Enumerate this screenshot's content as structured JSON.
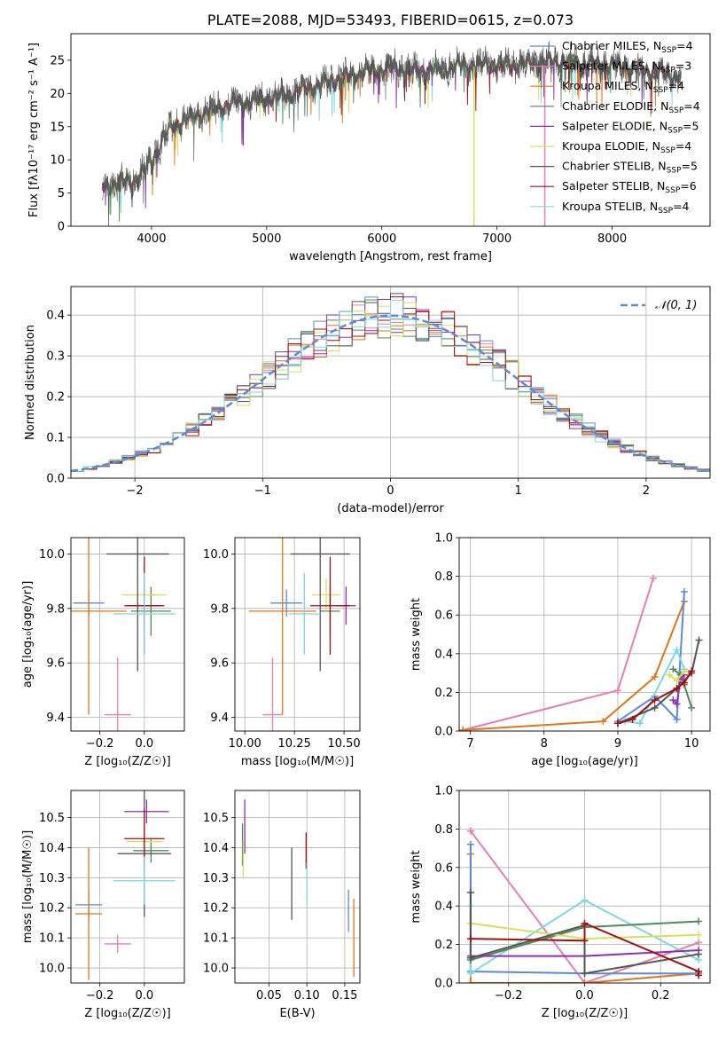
{
  "colors": {
    "chabrier_miles": "#5b8bd8",
    "salpeter_miles": "#e67fb3",
    "kroupa_miles": "#e0761a",
    "chabrier_elodie": "#4f8a5a",
    "salpeter_elodie": "#8e2fb5",
    "kroupa_elodie": "#d6e05a",
    "chabrier_stelib": "#555555",
    "salpeter_stelib": "#a01010",
    "kroupa_stelib": "#7ed8e0",
    "gauss": "#5b8bd8",
    "grid": "#b0b0b0"
  },
  "chart_data": [
    {
      "id": "spectrum",
      "type": "line",
      "title": "PLATE=2088, MJD=53493, FIBERID=0615, z=0.073",
      "xlabel": "wavelength [Angstrom, rest frame]",
      "ylabel": "Flux [fλ10⁻¹⁷ erg cm⁻² s⁻¹ A⁻¹]",
      "xlim": [
        3300,
        8850
      ],
      "ylim": [
        0,
        29
      ],
      "xticks": [
        "4000",
        "5000",
        "6000",
        "7000",
        "8000"
      ],
      "yticks": [
        "0",
        "5",
        "10",
        "15",
        "20",
        "25"
      ],
      "grid": false,
      "legend_position": "right",
      "legend": [
        {
          "label": "Chabrier MILES, N",
          "sub": "SSP",
          "suffix": "=4",
          "key": "chabrier_miles"
        },
        {
          "label": "Salpeter MILES, N",
          "sub": "SSP",
          "suffix": "=3",
          "key": "salpeter_miles"
        },
        {
          "label": "Kroupa MILES, N",
          "sub": "SSP",
          "suffix": "=4",
          "key": "kroupa_miles"
        },
        {
          "label": "Chabrier ELODIE, N",
          "sub": "SSP",
          "suffix": "=4",
          "key": "chabrier_elodie"
        },
        {
          "label": "Salpeter ELODIE, N",
          "sub": "SSP",
          "suffix": "=5",
          "key": "salpeter_elodie"
        },
        {
          "label": "Kroupa ELODIE, N",
          "sub": "SSP",
          "suffix": "=4",
          "key": "kroupa_elodie"
        },
        {
          "label": "Chabrier STELIB, N",
          "sub": "SSP",
          "suffix": "=5",
          "key": "chabrier_stelib"
        },
        {
          "label": "Salpeter STELIB, N",
          "sub": "SSP",
          "suffix": "=6",
          "key": "salpeter_stelib"
        },
        {
          "label": "Kroupa STELIB, N",
          "sub": "SSP",
          "suffix": "=4",
          "key": "kroupa_stelib"
        }
      ],
      "continuum": {
        "x": [
          3570,
          3700,
          3850,
          3950,
          4000,
          4100,
          4200,
          4300,
          4500,
          4700,
          4900,
          5100,
          5300,
          5500,
          5700,
          5900,
          6100,
          6300,
          6500,
          6700,
          6900,
          7100,
          7300,
          7500,
          7700,
          7900,
          8100,
          8300,
          8600
        ],
        "y": [
          6,
          6.5,
          7,
          8.5,
          10,
          13,
          15.5,
          16,
          17.5,
          18.5,
          19,
          19.5,
          20.5,
          21.5,
          22.5,
          23.5,
          23.8,
          23.5,
          23.7,
          24.2,
          24.3,
          24.4,
          24.5,
          24.8,
          24.6,
          24.3,
          24.0,
          23.5,
          22.5
        ]
      },
      "vlines": [
        {
          "x": 6800,
          "key": "kroupa_elodie"
        },
        {
          "x": 7415,
          "key": "salpeter_miles"
        }
      ]
    },
    {
      "id": "residuals",
      "type": "bar",
      "xlabel": "(data-model)/error",
      "ylabel": "Normed distribution",
      "xlim": [
        -2.5,
        2.5
      ],
      "ylim": [
        0,
        0.47
      ],
      "xticks": [
        "−2",
        "−1",
        "0",
        "1",
        "2"
      ],
      "yticks": [
        "0.0",
        "0.1",
        "0.2",
        "0.3",
        "0.4"
      ],
      "grid": true,
      "legend_position": "top-right",
      "legend": [
        {
          "label": "𝒩(0, 1)",
          "key": "gauss"
        }
      ],
      "bin_width": 0.1
    },
    {
      "id": "age_vs_Z",
      "type": "scatter",
      "xlabel": "Z [log₁₀(Z/Z☉)]",
      "ylabel": "age  [log₁₀(age/yr)]",
      "xlim": [
        -0.33,
        0.18
      ],
      "ylim": [
        9.35,
        10.06
      ],
      "xticks": [
        "−0.2",
        "0.0"
      ],
      "yticks": [
        "9.4",
        "9.6",
        "9.8",
        "10.0"
      ],
      "grid": true,
      "points": [
        {
          "key": "chabrier_miles",
          "x": -0.25,
          "xe": 0.07,
          "y": 9.82,
          "ye": 0.05
        },
        {
          "key": "salpeter_miles",
          "x": -0.12,
          "xe": 0.06,
          "y": 9.41,
          "ye": 0.21
        },
        {
          "key": "kroupa_miles",
          "x": -0.25,
          "xe": 0.17,
          "y": 9.79,
          "ye": 0.38
        },
        {
          "key": "chabrier_elodie",
          "x": 0.03,
          "xe": 0.09,
          "y": 9.79,
          "ye": 0.09
        },
        {
          "key": "salpeter_elodie",
          "x": 0.0,
          "xe": 0.08,
          "y": 9.81,
          "ye": 0.07
        },
        {
          "key": "kroupa_elodie",
          "x": 0.0,
          "xe": 0.1,
          "y": 9.85,
          "ye": 0.06
        },
        {
          "key": "chabrier_stelib",
          "x": -0.03,
          "xe": 0.14,
          "y": 10.0,
          "ye": 0.43
        },
        {
          "key": "salpeter_stelib",
          "x": 0.0,
          "xe": 0.09,
          "y": 9.81,
          "ye": 0.18
        },
        {
          "key": "kroupa_stelib",
          "x": 0.0,
          "xe": 0.14,
          "y": 9.78,
          "ye": 0.15
        }
      ]
    },
    {
      "id": "age_vs_mass",
      "type": "scatter",
      "xlabel": "mass [log₁₀(M/M☉)]",
      "ylabel": "",
      "xlim": [
        9.95,
        10.58
      ],
      "ylim": [
        9.35,
        10.06
      ],
      "xticks": [
        "10.00",
        "10.25",
        "10.50"
      ],
      "yticks": [
        "9.4",
        "9.6",
        "9.8",
        "10.0"
      ],
      "grid": true,
      "points": [
        {
          "key": "chabrier_miles",
          "x": 10.21,
          "xe": 0.08,
          "y": 9.82,
          "ye": 0.05
        },
        {
          "key": "salpeter_miles",
          "x": 10.14,
          "xe": 0.05,
          "y": 9.41,
          "ye": 0.21
        },
        {
          "key": "kroupa_miles",
          "x": 10.19,
          "xe": 0.17,
          "y": 9.79,
          "ye": 0.38
        },
        {
          "key": "chabrier_elodie",
          "x": 10.43,
          "xe": 0.05,
          "y": 9.79,
          "ye": 0.09
        },
        {
          "key": "salpeter_elodie",
          "x": 10.51,
          "xe": 0.05,
          "y": 9.81,
          "ye": 0.07
        },
        {
          "key": "kroupa_elodie",
          "x": 10.41,
          "xe": 0.07,
          "y": 9.85,
          "ye": 0.06
        },
        {
          "key": "chabrier_stelib",
          "x": 10.38,
          "xe": 0.15,
          "y": 10.0,
          "ye": 0.43
        },
        {
          "key": "salpeter_stelib",
          "x": 10.43,
          "xe": 0.1,
          "y": 9.81,
          "ye": 0.18
        },
        {
          "key": "kroupa_stelib",
          "x": 10.3,
          "xe": 0.08,
          "y": 9.78,
          "ye": 0.15
        }
      ]
    },
    {
      "id": "weight_vs_age",
      "type": "line",
      "xlabel": "age  [log₁₀(age/yr)]",
      "ylabel": "mass weight",
      "xlim": [
        6.85,
        10.25
      ],
      "ylim": [
        0,
        1.0
      ],
      "xticks": [
        "7",
        "8",
        "9",
        "10"
      ],
      "yticks": [
        "0.0",
        "0.2",
        "0.4",
        "0.6",
        "0.8",
        "1.0"
      ],
      "grid": true,
      "series": [
        {
          "key": "salpeter_miles",
          "x": [
            6.9,
            9.0,
            9.48
          ],
          "y": [
            0.005,
            0.21,
            0.79
          ]
        },
        {
          "key": "kroupa_miles",
          "x": [
            6.9,
            8.8,
            9.5,
            9.9
          ],
          "y": [
            0.005,
            0.05,
            0.28,
            0.67
          ]
        },
        {
          "key": "chabrier_miles",
          "x": [
            9.0,
            9.5,
            9.8,
            9.9
          ],
          "y": [
            0.05,
            0.18,
            0.06,
            0.72
          ]
        },
        {
          "key": "kroupa_stelib",
          "x": [
            9.1,
            9.3,
            9.8,
            9.9
          ],
          "y": [
            0.05,
            0.04,
            0.42,
            0.32
          ]
        },
        {
          "key": "chabrier_elodie",
          "x": [
            9.75,
            9.85,
            9.9,
            10.0
          ],
          "y": [
            0.32,
            0.29,
            0.24,
            0.12
          ]
        },
        {
          "key": "salpeter_elodie",
          "x": [
            9.75,
            9.8,
            9.85,
            9.9
          ],
          "y": [
            0.16,
            0.14,
            0.27,
            0.29
          ]
        },
        {
          "key": "kroupa_elodie",
          "x": [
            9.7,
            9.8,
            9.9,
            10.0
          ],
          "y": [
            0.29,
            0.26,
            0.31,
            0.3
          ]
        },
        {
          "key": "chabrier_stelib",
          "x": [
            9.0,
            9.5,
            9.8,
            10.0,
            10.1
          ],
          "y": [
            0.04,
            0.12,
            0.22,
            0.3,
            0.47
          ]
        },
        {
          "key": "salpeter_stelib",
          "x": [
            9.0,
            9.2,
            9.5,
            9.8,
            9.9,
            10.0
          ],
          "y": [
            0.04,
            0.06,
            0.16,
            0.22,
            0.25,
            0.31
          ]
        }
      ]
    },
    {
      "id": "mass_vs_Z",
      "type": "scatter",
      "xlabel": "Z [log₁₀(Z/Z☉)]",
      "ylabel": "mass [log₁₀(M/M☉)]",
      "xlim": [
        -0.33,
        0.18
      ],
      "ylim": [
        9.95,
        10.59
      ],
      "xticks": [
        "−0.2",
        "0.0"
      ],
      "yticks": [
        "10.0",
        "10.1",
        "10.2",
        "10.3",
        "10.4",
        "10.5"
      ],
      "grid": true,
      "points": [
        {
          "key": "chabrier_miles",
          "x": -0.25,
          "xe": 0.06,
          "y": 10.21,
          "ye": 0.05
        },
        {
          "key": "salpeter_miles",
          "x": -0.12,
          "xe": 0.06,
          "y": 10.08,
          "ye": 0.03
        },
        {
          "key": "kroupa_miles",
          "x": -0.25,
          "xe": 0.06,
          "y": 10.18,
          "ye": 0.22
        },
        {
          "key": "chabrier_elodie",
          "x": 0.03,
          "xe": 0.08,
          "y": 10.39,
          "ye": 0.04
        },
        {
          "key": "salpeter_elodie",
          "x": 0.01,
          "xe": 0.1,
          "y": 10.52,
          "ye": 0.04
        },
        {
          "key": "kroupa_elodie",
          "x": 0.0,
          "xe": 0.08,
          "y": 10.42,
          "ye": 0.03
        },
        {
          "key": "chabrier_stelib",
          "x": 0.0,
          "xe": 0.12,
          "y": 10.38,
          "ye": 0.21
        },
        {
          "key": "salpeter_stelib",
          "x": 0.0,
          "xe": 0.09,
          "y": 10.43,
          "ye": 0.1
        },
        {
          "key": "kroupa_stelib",
          "x": 0.0,
          "xe": 0.14,
          "y": 10.29,
          "ye": 0.08
        }
      ]
    },
    {
      "id": "mass_vs_ebv",
      "type": "scatter",
      "xlabel": "E(B-V)",
      "ylabel": "",
      "xlim": [
        0.005,
        0.17
      ],
      "ylim": [
        9.95,
        10.59
      ],
      "xticks": [
        "0.05",
        "0.10",
        "0.15"
      ],
      "yticks": [
        "10.0",
        "10.1",
        "10.2",
        "10.3",
        "10.4",
        "10.5"
      ],
      "grid": true,
      "points": [
        {
          "key": "chabrier_elodie",
          "x": 0.015,
          "xe": 0,
          "y": 10.41,
          "ye": 0.07
        },
        {
          "key": "salpeter_elodie",
          "x": 0.018,
          "xe": 0,
          "y": 10.47,
          "ye": 0.09
        },
        {
          "key": "kroupa_elodie",
          "x": 0.016,
          "xe": 0,
          "y": 10.36,
          "ye": 0.06
        },
        {
          "key": "chabrier_stelib",
          "x": 0.08,
          "xe": 0,
          "y": 10.28,
          "ye": 0.12
        },
        {
          "key": "salpeter_stelib",
          "x": 0.099,
          "xe": 0,
          "y": 10.39,
          "ye": 0.06
        },
        {
          "key": "kroupa_stelib",
          "x": 0.1,
          "xe": 0,
          "y": 10.28,
          "ye": 0.07
        },
        {
          "key": "chabrier_miles",
          "x": 0.155,
          "xe": 0,
          "y": 10.19,
          "ye": 0.07
        },
        {
          "key": "kroupa_miles",
          "x": 0.162,
          "xe": 0,
          "y": 10.1,
          "ye": 0.13
        }
      ]
    },
    {
      "id": "weight_vs_Z",
      "type": "line",
      "xlabel": "Z [log₁₀(Z/Z☉)]",
      "ylabel": "mass weight",
      "xlim": [
        -0.33,
        0.33
      ],
      "ylim": [
        0,
        1.0
      ],
      "xticks": [
        "−0.2",
        "0.0",
        "0.2"
      ],
      "yticks": [
        "0.0",
        "0.2",
        "0.4",
        "0.6",
        "0.8",
        "1.0"
      ],
      "grid": true,
      "series": [
        {
          "key": "salpeter_miles",
          "x": [
            -0.3,
            -0.3,
            0.0,
            0.3
          ],
          "y": [
            0.79,
            0.79,
            0.0,
            0.21
          ]
        },
        {
          "key": "kroupa_miles",
          "x": [
            -0.3,
            -0.3,
            0.0,
            0.3,
            0.3
          ],
          "y": [
            0.67,
            0.0,
            0.0,
            0.05,
            0.05
          ]
        },
        {
          "key": "chabrier_miles",
          "x": [
            -0.3,
            -0.3,
            0.0,
            0.3
          ],
          "y": [
            0.72,
            0.06,
            0.05,
            0.05
          ]
        },
        {
          "key": "kroupa_stelib",
          "x": [
            -0.3,
            -0.3,
            0.0,
            0.3
          ],
          "y": [
            0.4,
            0.05,
            0.43,
            0.12
          ]
        },
        {
          "key": "chabrier_elodie",
          "x": [
            -0.3,
            0.0,
            0.3
          ],
          "y": [
            0.12,
            0.29,
            0.32
          ]
        },
        {
          "key": "salpeter_elodie",
          "x": [
            -0.3,
            0.0,
            0.3
          ],
          "y": [
            0.14,
            0.14,
            0.17
          ]
        },
        {
          "key": "kroupa_elodie",
          "x": [
            -0.3,
            0.0,
            0.3
          ],
          "y": [
            0.31,
            0.23,
            0.25
          ]
        },
        {
          "key": "chabrier_stelib",
          "x": [
            -0.3,
            -0.3,
            0.0,
            0.0,
            0.3
          ],
          "y": [
            0.47,
            0.13,
            0.3,
            0.05,
            0.15
          ]
        },
        {
          "key": "salpeter_stelib",
          "x": [
            -0.3,
            0.0,
            0.0,
            0.3,
            0.3
          ],
          "y": [
            0.23,
            0.22,
            0.31,
            0.06,
            0.04
          ]
        }
      ]
    }
  ]
}
